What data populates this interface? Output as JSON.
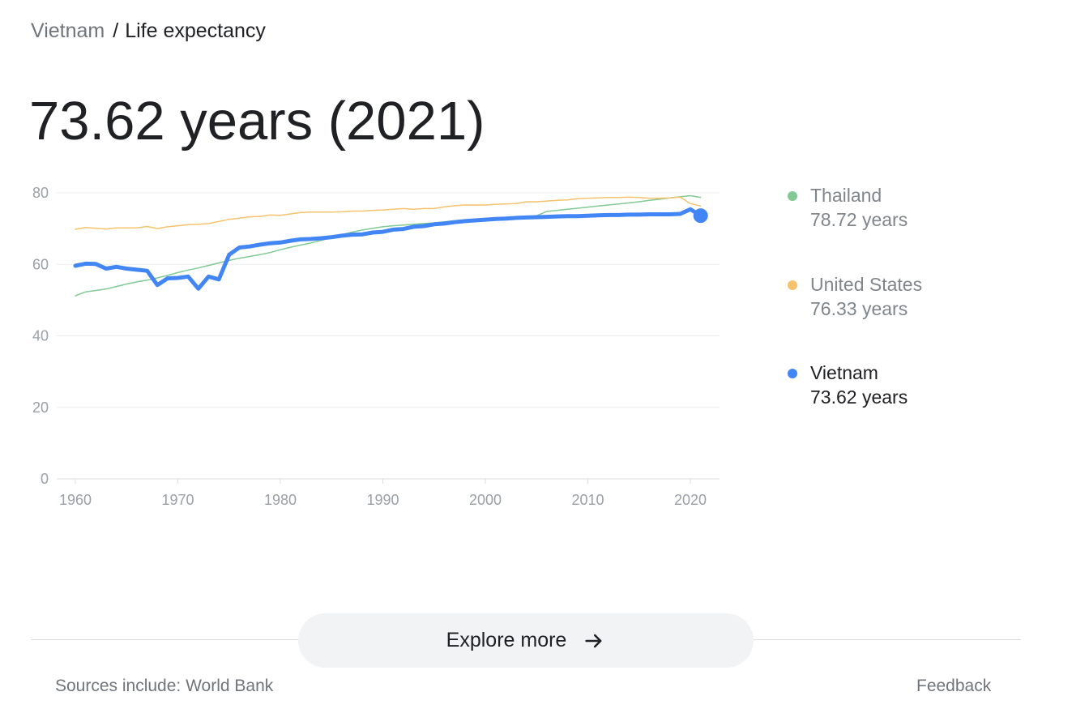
{
  "breadcrumb": {
    "parent": "Vietnam",
    "separator": "/",
    "current": "Life expectancy"
  },
  "headline": "73.62 years (2021)",
  "legend": [
    {
      "name": "Thailand",
      "value": "78.72 years",
      "color": "#81c995",
      "active": false
    },
    {
      "name": "United States",
      "value": "76.33 years",
      "color": "#f6c26b",
      "active": false
    },
    {
      "name": "Vietnam",
      "value": "73.62 years",
      "color": "#4285f4",
      "active": true
    }
  ],
  "explore_label": "Explore more",
  "sources": "Sources include: World Bank",
  "feedback": "Feedback",
  "chart_data": {
    "type": "line",
    "ylim": [
      0,
      80
    ],
    "xlim": [
      1960,
      2021
    ],
    "y_ticks": [
      "0",
      "20",
      "40",
      "60",
      "80"
    ],
    "x_ticks": [
      "1960",
      "1970",
      "1980",
      "1990",
      "2000",
      "2010",
      "2020"
    ],
    "grid": true,
    "legend_position": "right",
    "highlight": {
      "series": "Vietnam",
      "x": 2021,
      "y": 73.62
    },
    "series": [
      {
        "name": "Thailand",
        "color": "#81c995",
        "width": 1.5,
        "points": [
          [
            1960,
            51.2
          ],
          [
            1961,
            52.3
          ],
          [
            1962,
            52.7
          ],
          [
            1963,
            53.1
          ],
          [
            1964,
            53.8
          ],
          [
            1965,
            54.5
          ],
          [
            1966,
            55.1
          ],
          [
            1967,
            55.6
          ],
          [
            1968,
            56.2
          ],
          [
            1969,
            56.9
          ],
          [
            1970,
            57.7
          ],
          [
            1971,
            58.4
          ],
          [
            1972,
            59.0
          ],
          [
            1973,
            59.7
          ],
          [
            1974,
            60.4
          ],
          [
            1975,
            61.1
          ],
          [
            1976,
            61.7
          ],
          [
            1977,
            62.2
          ],
          [
            1978,
            62.7
          ],
          [
            1979,
            63.3
          ],
          [
            1980,
            64.1
          ],
          [
            1981,
            64.8
          ],
          [
            1982,
            65.4
          ],
          [
            1983,
            66.0
          ],
          [
            1984,
            66.7
          ],
          [
            1985,
            67.5
          ],
          [
            1986,
            68.3
          ],
          [
            1987,
            69.0
          ],
          [
            1988,
            69.6
          ],
          [
            1989,
            70.1
          ],
          [
            1990,
            70.5
          ],
          [
            1991,
            70.8
          ],
          [
            1992,
            71.0
          ],
          [
            1993,
            71.2
          ],
          [
            1994,
            71.4
          ],
          [
            1995,
            71.6
          ],
          [
            1996,
            71.9
          ],
          [
            1997,
            72.2
          ],
          [
            1998,
            72.4
          ],
          [
            1999,
            72.6
          ],
          [
            2000,
            72.8
          ],
          [
            2001,
            72.9
          ],
          [
            2002,
            73.0
          ],
          [
            2003,
            73.1
          ],
          [
            2004,
            73.2
          ],
          [
            2005,
            73.6
          ],
          [
            2006,
            74.8
          ],
          [
            2007,
            75.1
          ],
          [
            2008,
            75.4
          ],
          [
            2009,
            75.7
          ],
          [
            2010,
            76.0
          ],
          [
            2011,
            76.3
          ],
          [
            2012,
            76.6
          ],
          [
            2013,
            76.9
          ],
          [
            2014,
            77.2
          ],
          [
            2015,
            77.5
          ],
          [
            2016,
            77.9
          ],
          [
            2017,
            78.2
          ],
          [
            2018,
            78.6
          ],
          [
            2019,
            78.9
          ],
          [
            2020,
            79.2
          ],
          [
            2021,
            78.72
          ]
        ]
      },
      {
        "name": "United States",
        "color": "#f6c26b",
        "width": 1.5,
        "points": [
          [
            1960,
            69.8
          ],
          [
            1961,
            70.3
          ],
          [
            1962,
            70.1
          ],
          [
            1963,
            69.9
          ],
          [
            1964,
            70.2
          ],
          [
            1965,
            70.2
          ],
          [
            1966,
            70.2
          ],
          [
            1967,
            70.6
          ],
          [
            1968,
            70.0
          ],
          [
            1969,
            70.5
          ],
          [
            1970,
            70.8
          ],
          [
            1971,
            71.1
          ],
          [
            1972,
            71.2
          ],
          [
            1973,
            71.4
          ],
          [
            1974,
            72.0
          ],
          [
            1975,
            72.6
          ],
          [
            1976,
            72.9
          ],
          [
            1977,
            73.3
          ],
          [
            1978,
            73.4
          ],
          [
            1979,
            73.8
          ],
          [
            1980,
            73.7
          ],
          [
            1981,
            74.1
          ],
          [
            1982,
            74.5
          ],
          [
            1983,
            74.6
          ],
          [
            1984,
            74.6
          ],
          [
            1985,
            74.6
          ],
          [
            1986,
            74.7
          ],
          [
            1987,
            74.9
          ],
          [
            1988,
            74.9
          ],
          [
            1989,
            75.1
          ],
          [
            1990,
            75.2
          ],
          [
            1991,
            75.4
          ],
          [
            1992,
            75.6
          ],
          [
            1993,
            75.4
          ],
          [
            1994,
            75.6
          ],
          [
            1995,
            75.6
          ],
          [
            1996,
            76.1
          ],
          [
            1997,
            76.4
          ],
          [
            1998,
            76.6
          ],
          [
            1999,
            76.6
          ],
          [
            2000,
            76.6
          ],
          [
            2001,
            76.8
          ],
          [
            2002,
            76.9
          ],
          [
            2003,
            77.0
          ],
          [
            2004,
            77.5
          ],
          [
            2005,
            77.5
          ],
          [
            2006,
            77.7
          ],
          [
            2007,
            77.9
          ],
          [
            2008,
            78.0
          ],
          [
            2009,
            78.4
          ],
          [
            2010,
            78.5
          ],
          [
            2011,
            78.6
          ],
          [
            2012,
            78.7
          ],
          [
            2013,
            78.7
          ],
          [
            2014,
            78.8
          ],
          [
            2015,
            78.7
          ],
          [
            2016,
            78.5
          ],
          [
            2017,
            78.5
          ],
          [
            2018,
            78.6
          ],
          [
            2019,
            78.8
          ],
          [
            2020,
            77.0
          ],
          [
            2021,
            76.33
          ]
        ]
      },
      {
        "name": "Vietnam",
        "color": "#4285f4",
        "width": 5,
        "points": [
          [
            1960,
            59.6
          ],
          [
            1961,
            60.2
          ],
          [
            1962,
            60.1
          ],
          [
            1963,
            58.8
          ],
          [
            1964,
            59.3
          ],
          [
            1965,
            58.8
          ],
          [
            1966,
            58.5
          ],
          [
            1967,
            58.2
          ],
          [
            1968,
            54.2
          ],
          [
            1969,
            56.1
          ],
          [
            1970,
            56.2
          ],
          [
            1971,
            56.6
          ],
          [
            1972,
            53.2
          ],
          [
            1973,
            56.6
          ],
          [
            1974,
            55.8
          ],
          [
            1975,
            62.7
          ],
          [
            1976,
            64.7
          ],
          [
            1977,
            65.0
          ],
          [
            1978,
            65.5
          ],
          [
            1979,
            65.9
          ],
          [
            1980,
            66.1
          ],
          [
            1981,
            66.6
          ],
          [
            1982,
            67.0
          ],
          [
            1983,
            67.1
          ],
          [
            1984,
            67.3
          ],
          [
            1985,
            67.6
          ],
          [
            1986,
            68.0
          ],
          [
            1987,
            68.3
          ],
          [
            1988,
            68.4
          ],
          [
            1989,
            68.9
          ],
          [
            1990,
            69.1
          ],
          [
            1991,
            69.7
          ],
          [
            1992,
            69.9
          ],
          [
            1993,
            70.5
          ],
          [
            1994,
            70.7
          ],
          [
            1995,
            71.2
          ],
          [
            1996,
            71.4
          ],
          [
            1997,
            71.8
          ],
          [
            1998,
            72.1
          ],
          [
            1999,
            72.3
          ],
          [
            2000,
            72.5
          ],
          [
            2001,
            72.7
          ],
          [
            2002,
            72.8
          ],
          [
            2003,
            73.0
          ],
          [
            2004,
            73.1
          ],
          [
            2005,
            73.2
          ],
          [
            2006,
            73.3
          ],
          [
            2007,
            73.4
          ],
          [
            2008,
            73.5
          ],
          [
            2009,
            73.5
          ],
          [
            2010,
            73.6
          ],
          [
            2011,
            73.7
          ],
          [
            2012,
            73.8
          ],
          [
            2013,
            73.8
          ],
          [
            2014,
            73.9
          ],
          [
            2015,
            73.9
          ],
          [
            2016,
            74.0
          ],
          [
            2017,
            74.0
          ],
          [
            2018,
            74.0
          ],
          [
            2019,
            74.1
          ],
          [
            2020,
            75.4
          ],
          [
            2021,
            73.62
          ]
        ]
      }
    ]
  }
}
